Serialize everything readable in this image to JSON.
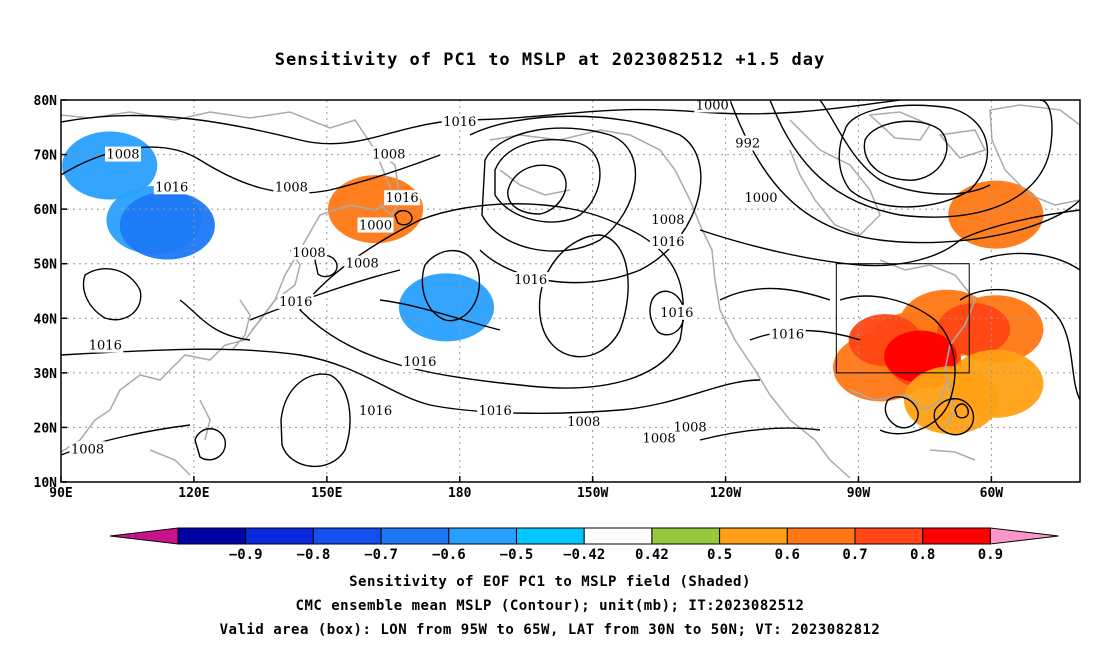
{
  "title": "Sensitivity of PC1 to MSLP at 2023082512 +1.5 day",
  "map": {
    "lon_labels": [
      "90E",
      "120E",
      "150E",
      "180",
      "150W",
      "120W",
      "90W",
      "60W"
    ],
    "lat_labels": [
      "80N",
      "70N",
      "60N",
      "50N",
      "40N",
      "30N",
      "20N",
      "10N"
    ],
    "contour_labels": [
      {
        "text": "1016",
        "lon": 180,
        "lat": 76
      },
      {
        "text": "1008",
        "lon": 164,
        "lat": 70
      },
      {
        "text": "1000",
        "lon": 237,
        "lat": 79
      },
      {
        "text": "992",
        "lon": 245,
        "lat": 72
      },
      {
        "text": "1000",
        "lon": 248,
        "lat": 62
      },
      {
        "text": "1008",
        "lon": 104,
        "lat": 70
      },
      {
        "text": "1016",
        "lon": 115,
        "lat": 64
      },
      {
        "text": "1008",
        "lon": 142,
        "lat": 64
      },
      {
        "text": "1008",
        "lon": 146,
        "lat": 52
      },
      {
        "text": "1016",
        "lon": 143,
        "lat": 43
      },
      {
        "text": "1000",
        "lon": 161,
        "lat": 57
      },
      {
        "text": "1016",
        "lon": 167,
        "lat": 62
      },
      {
        "text": "1008",
        "lon": 158,
        "lat": 50
      },
      {
        "text": "1016",
        "lon": 196,
        "lat": 47
      },
      {
        "text": "1016",
        "lon": 100,
        "lat": 35
      },
      {
        "text": "1016",
        "lon": 171,
        "lat": 32
      },
      {
        "text": "1016",
        "lon": 161,
        "lat": 23
      },
      {
        "text": "1016",
        "lon": 188,
        "lat": 23
      },
      {
        "text": "1008",
        "lon": 208,
        "lat": 21
      },
      {
        "text": "1008",
        "lon": 225,
        "lat": 18
      },
      {
        "text": "1008",
        "lon": 232,
        "lat": 20
      },
      {
        "text": "1016",
        "lon": 229,
        "lat": 41
      },
      {
        "text": "1016",
        "lon": 254,
        "lat": 37
      },
      {
        "text": "1008",
        "lon": 227,
        "lat": 58
      },
      {
        "text": "1016",
        "lon": 227,
        "lat": 54
      },
      {
        "text": "1008",
        "lon": 96,
        "lat": 16
      }
    ],
    "box": {
      "lon_from": 265,
      "lon_to": 295,
      "lat_from": 30,
      "lat_to": 50
    },
    "shaded_areas": [
      {
        "value": 0.6,
        "lon": 283,
        "lat": 35
      },
      {
        "value": 0.6,
        "lon": 290,
        "lat": 39
      },
      {
        "value": 0.6,
        "lon": 301,
        "lat": 38
      },
      {
        "value": 0.6,
        "lon": 275,
        "lat": 31
      },
      {
        "value": 0.7,
        "lon": 276,
        "lat": 36
      },
      {
        "value": 0.7,
        "lon": 285,
        "lat": 32
      },
      {
        "value": 0.7,
        "lon": 296,
        "lat": 38
      },
      {
        "value": 0.8,
        "lon": 284,
        "lat": 33
      },
      {
        "value": 0.5,
        "lon": 291,
        "lat": 25
      },
      {
        "value": 0.5,
        "lon": 301,
        "lat": 28
      },
      {
        "value": 0.6,
        "lon": 301,
        "lat": 59
      },
      {
        "value": -0.5,
        "lon": 111,
        "lat": 58
      },
      {
        "value": -0.6,
        "lon": 114,
        "lat": 57
      },
      {
        "value": -0.5,
        "lon": 101,
        "lat": 68
      },
      {
        "value": 0.6,
        "lon": 161,
        "lat": 60
      },
      {
        "value": -0.5,
        "lon": 177,
        "lat": 42
      }
    ]
  },
  "colorbar": {
    "labels": [
      "-0.9",
      "-0.8",
      "-0.7",
      "-0.6",
      "-0.5",
      "-0.42",
      "0.42",
      "0.5",
      "0.6",
      "0.7",
      "0.8",
      "0.9"
    ],
    "colors": [
      "#0000a8",
      "#0a28dc",
      "#1450f0",
      "#1e78f5",
      "#28a0ff",
      "#00c8ff",
      "#ffffff",
      "#96c83c",
      "#ffa014",
      "#ff7814",
      "#ff4614",
      "#ff0000"
    ],
    "low_end_color": "#c8148c",
    "high_end_color": "#ff96c8"
  },
  "captions": [
    "Sensitivity of EOF PC1 to MSLP field (Shaded)",
    "CMC ensemble mean MSLP (Contour); unit(mb); IT:2023082512",
    "Valid area (box): LON from 95W to 65W, LAT from 30N to 50N; VT: 2023082812"
  ]
}
